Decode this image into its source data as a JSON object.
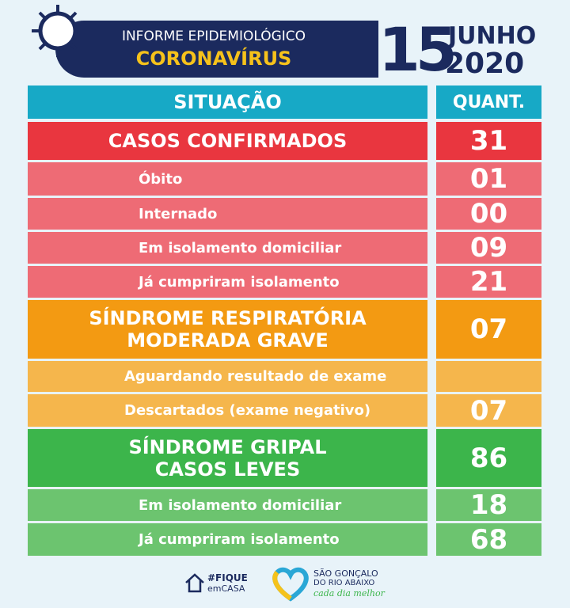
{
  "header": {
    "line1": "INFORME EPIDEMIOLÓGICO",
    "line2": "CORONAVÍRUS",
    "day": "15",
    "month": "JUNHO",
    "year": "2020"
  },
  "table": {
    "columns": [
      "SITUAÇÃO",
      "QUANT."
    ],
    "header_color": "#17a9c6",
    "rows": [
      {
        "label": [
          "CASOS CONFIRMADOS"
        ],
        "value": "31",
        "kind": "main",
        "color": "#e9363f"
      },
      {
        "label": [
          "Óbito"
        ],
        "value": "01",
        "kind": "sub",
        "color": "#ee6b75"
      },
      {
        "label": [
          "Internado"
        ],
        "value": "00",
        "kind": "sub",
        "color": "#ee6b75"
      },
      {
        "label": [
          "Em isolamento domiciliar"
        ],
        "value": "09",
        "kind": "sub",
        "color": "#ee6b75"
      },
      {
        "label": [
          "Já cumpriram isolamento"
        ],
        "value": "21",
        "kind": "sub",
        "color": "#ee6b75"
      },
      {
        "label": [
          "SÍNDROME RESPIRATÓRIA",
          "MODERADA GRAVE"
        ],
        "value": "07",
        "kind": "main",
        "color": "#f39a12"
      },
      {
        "label": [
          "Aguardando resultado de exame"
        ],
        "kind": "sub",
        "color": "#f5b64c"
      },
      {
        "label": [
          "Descartados (exame negativo)"
        ],
        "value": "07",
        "kind": "sub",
        "color": "#f5b64c"
      },
      {
        "label": [
          "SÍNDROME GRIPAL",
          "CASOS LEVES"
        ],
        "value": "86",
        "kind": "main",
        "color": "#3cb54b"
      },
      {
        "label": [
          "Em isolamento domiciliar"
        ],
        "value": "18",
        "kind": "sub",
        "color": "#6cc46f"
      },
      {
        "label": [
          "Já cumpriram isolamento"
        ],
        "value": "68",
        "kind": "sub",
        "color": "#6cc46f"
      }
    ]
  },
  "footer": {
    "tag1": "#FIQUE",
    "tag2": "emCASA",
    "city1": "SÃO GONÇALO",
    "city2": "DO RIO ABAIXO",
    "slogan": "cada dia melhor"
  }
}
